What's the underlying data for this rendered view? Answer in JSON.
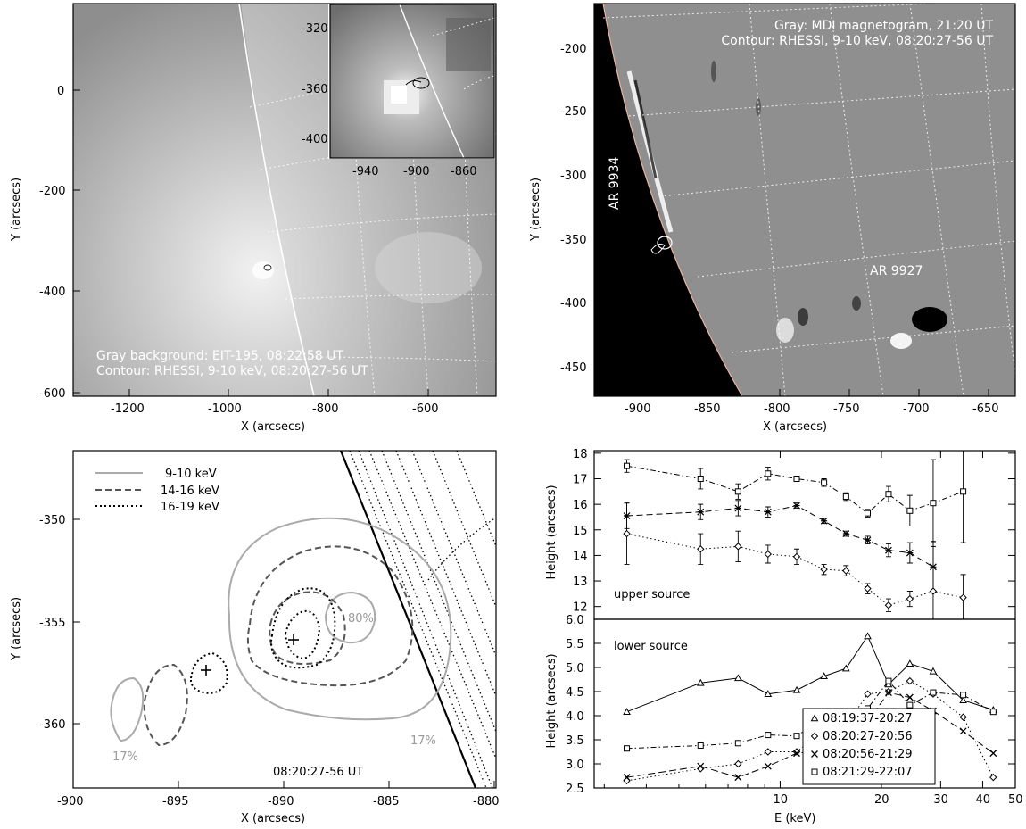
{
  "figure": {
    "panel_a": {
      "xlabel": "X (arcsecs)",
      "ylabel": "Y (arcsecs)",
      "xticks": [
        "-1200",
        "-1000",
        "-800",
        "-600"
      ],
      "yticks": [
        "0",
        "-200",
        "-400",
        "-600"
      ],
      "caption1": "Gray background: EIT-195, 08:22:58 UT",
      "caption2": "Contour: RHESSI, 9-10 keV, 08:20:27-56 UT",
      "inset_xticks": [
        "-940",
        "-900",
        "-860"
      ],
      "inset_yticks": [
        "-320",
        "-360",
        "-400"
      ]
    },
    "panel_b": {
      "xlabel": "X (arcsecs)",
      "ylabel": "Y (arcsecs)",
      "xticks": [
        "-900",
        "-850",
        "-800",
        "-750",
        "-700",
        "-650"
      ],
      "yticks": [
        "-200",
        "-250",
        "-300",
        "-350",
        "-400",
        "-450"
      ],
      "caption1": "Gray: MDI magnetogram, 21:20 UT",
      "caption2": "Contour: RHESSI, 9-10 keV, 08:20:27-56 UT",
      "ar1": "AR 9934",
      "ar2": "AR 9927"
    },
    "panel_c": {
      "xlabel": "X (arcsecs)",
      "ylabel": "Y (arcsecs)",
      "xticks": [
        "-900",
        "-895",
        "-890",
        "-885",
        "-880"
      ],
      "yticks": [
        "-350",
        "-355",
        "-360"
      ],
      "legend": [
        "9-10 keV",
        "14-16 keV",
        "16-19 keV"
      ],
      "pct_80": "80%",
      "pct_17a": "17%",
      "pct_17b": "17%",
      "time": "08:20:27-56 UT"
    }
  },
  "chart_data": [
    {
      "type": "line",
      "panel": "upper",
      "ylabel": "Height (arcsecs)",
      "annotation": "upper source",
      "ylim": [
        11.5,
        18.1
      ],
      "yticks": [
        "12",
        "13",
        "14",
        "15",
        "16",
        "17",
        "18"
      ],
      "series": [
        {
          "x": [
            3.5,
            5.8,
            7.5,
            9.2,
            11.2,
            13.5,
            15.7,
            18.2,
            21,
            24.3,
            28.5,
            35
          ],
          "y": [
            17.5,
            17.0,
            16.5,
            17.2,
            17.0,
            16.85,
            16.3,
            15.65,
            16.4,
            15.75,
            16.05,
            16.5
          ],
          "err": [
            0.25,
            0.4,
            0.3,
            0.25,
            0.1,
            0.15,
            0.15,
            0.15,
            0.3,
            0.6,
            1.7,
            2.0
          ]
        },
        {
          "x": [
            3.5,
            5.8,
            7.5,
            9.2,
            11.2,
            13.5,
            15.7,
            18.2,
            21,
            24.3,
            28.5
          ],
          "y": [
            15.55,
            15.7,
            15.85,
            15.7,
            15.95,
            15.35,
            14.85,
            14.6,
            14.2,
            14.1,
            13.55
          ],
          "err": [
            0.5,
            0.3,
            0.3,
            0.2,
            0.1,
            0.1,
            0.1,
            0.15,
            0.25,
            0.4,
            1.0
          ]
        },
        {
          "x": [
            3.5,
            5.8,
            7.5,
            9.2,
            11.2,
            13.5,
            15.7,
            18.2,
            21,
            24.3,
            28.5,
            35
          ],
          "y": [
            14.85,
            14.25,
            14.35,
            14.05,
            13.95,
            13.45,
            13.4,
            12.7,
            12.05,
            12.3,
            12.6,
            12.35
          ],
          "err": [
            1.2,
            0.6,
            0.6,
            0.35,
            0.3,
            0.2,
            0.2,
            0.2,
            0.25,
            0.3,
            1.9,
            0.9
          ]
        }
      ]
    },
    {
      "type": "line",
      "panel": "lower",
      "xlabel": "E (keV)",
      "ylabel": "Height (arcsecs)",
      "annotation": "lower source",
      "xlim": [
        2.8,
        50
      ],
      "xscale": "log",
      "xticks": [
        "10",
        "20",
        "30",
        "40",
        "50"
      ],
      "ylim": [
        2.5,
        6.0
      ],
      "yticks": [
        "2.5",
        "3.0",
        "3.5",
        "4.0",
        "4.5",
        "5.0",
        "5.5",
        "6.0"
      ],
      "series": [
        {
          "name": "08:19:37-20:27",
          "marker": "triangle",
          "x": [
            3.5,
            5.8,
            7.5,
            9.2,
            11.2,
            13.5,
            15.7,
            18.2,
            21,
            24.3,
            28.5,
            35,
            43
          ],
          "y": [
            4.08,
            4.68,
            4.78,
            4.45,
            4.53,
            4.82,
            4.98,
            5.65,
            4.65,
            5.08,
            4.92,
            4.32,
            4.12
          ]
        },
        {
          "name": "08:20:27-20:56",
          "marker": "diamond",
          "x": [
            3.5,
            5.8,
            7.5,
            9.2,
            11.2,
            13.5,
            15.7,
            18.2,
            21,
            24.3,
            28.5,
            35,
            43
          ],
          "y": [
            2.65,
            2.9,
            3.0,
            3.25,
            3.25,
            3.7,
            3.8,
            4.45,
            4.5,
            4.72,
            4.45,
            3.97,
            2.72
          ]
        },
        {
          "name": "08:20:56-21:29",
          "marker": "x",
          "x": [
            3.5,
            5.8,
            7.5,
            9.2,
            11.2,
            13.5,
            15.7,
            18.2,
            21,
            24.3,
            28.5,
            35,
            43
          ],
          "y": [
            2.72,
            2.95,
            2.72,
            2.95,
            3.22,
            3.28,
            3.72,
            3.88,
            4.48,
            4.38,
            4.1,
            3.68,
            3.22
          ]
        },
        {
          "name": "08:21:29-22:07",
          "marker": "square",
          "x": [
            3.5,
            5.8,
            7.5,
            9.2,
            11.2,
            13.5,
            15.7,
            18.2,
            21,
            24.3,
            28.5,
            35,
            43
          ],
          "y": [
            3.32,
            3.38,
            3.43,
            3.6,
            3.58,
            3.95,
            3.95,
            4.15,
            4.72,
            4.22,
            4.48,
            4.43,
            4.08
          ]
        }
      ]
    }
  ]
}
